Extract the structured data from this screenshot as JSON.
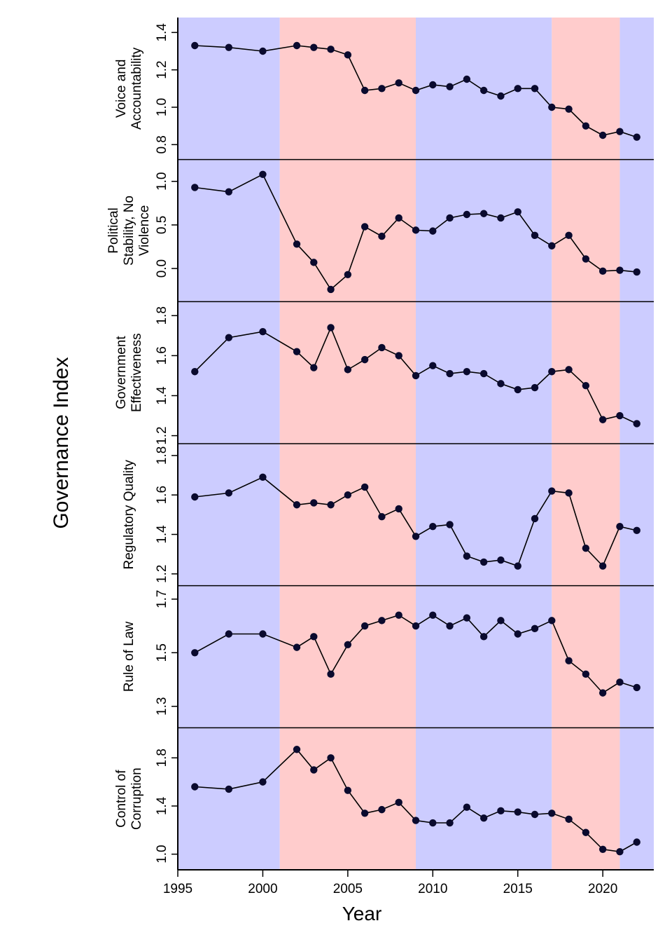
{
  "chart_data": {
    "type": "line",
    "ylabel": "Governance Index",
    "xlabel": "Year",
    "xlim": [
      1995,
      2023
    ],
    "x_ticks": [
      1995,
      2000,
      2005,
      2010,
      2015,
      2020
    ],
    "x_tick_labels": [
      "1995",
      "2000",
      "2005",
      "2010",
      "2015",
      "2020"
    ],
    "years": [
      1996,
      1998,
      2000,
      2002,
      2003,
      2004,
      2005,
      2006,
      2007,
      2008,
      2009,
      2010,
      2011,
      2012,
      2013,
      2014,
      2015,
      2016,
      2017,
      2018,
      2019,
      2020,
      2021,
      2022
    ],
    "background_bands": [
      {
        "start": 1995,
        "end": 2001,
        "color": "#ccccff"
      },
      {
        "start": 2001,
        "end": 2009,
        "color": "#ffcccc"
      },
      {
        "start": 2009,
        "end": 2017,
        "color": "#ccccff"
      },
      {
        "start": 2017,
        "end": 2021,
        "color": "#ffcccc"
      },
      {
        "start": 2021,
        "end": 2023,
        "color": "#ccccff"
      }
    ],
    "line_color": "#000000",
    "point_color": "#0a0a2e",
    "grid": false,
    "panels": [
      {
        "name_lines": [
          "Voice and",
          "Accountability"
        ],
        "ylim": [
          0.72,
          1.48
        ],
        "ticks": [
          0.8,
          1.0,
          1.2,
          1.4
        ],
        "tick_labels": [
          "0.8",
          "1.0",
          "1.2",
          "1.4"
        ],
        "values": [
          1.33,
          1.32,
          1.3,
          1.33,
          1.32,
          1.31,
          1.28,
          1.09,
          1.1,
          1.13,
          1.09,
          1.12,
          1.11,
          1.15,
          1.09,
          1.06,
          1.1,
          1.1,
          1.0,
          0.99,
          0.9,
          0.85,
          0.87,
          0.84
        ]
      },
      {
        "name_lines": [
          "Political",
          "Stability, No",
          "Violence"
        ],
        "ylim": [
          -0.38,
          1.25
        ],
        "ticks": [
          0.0,
          0.5,
          1.0
        ],
        "tick_labels": [
          "0.0",
          "0.5",
          "1.0"
        ],
        "values": [
          0.93,
          0.88,
          1.08,
          0.28,
          0.07,
          -0.24,
          -0.07,
          0.48,
          0.37,
          0.58,
          0.44,
          0.43,
          0.58,
          0.62,
          0.63,
          0.58,
          0.65,
          0.38,
          0.26,
          0.38,
          0.11,
          -0.03,
          -0.02,
          -0.04
        ]
      },
      {
        "name_lines": [
          "Government",
          "Effectiveness"
        ],
        "ylim": [
          1.16,
          1.87
        ],
        "ticks": [
          1.2,
          1.4,
          1.6,
          1.8
        ],
        "tick_labels": [
          "1.2",
          "1.4",
          "1.6",
          "1.8"
        ],
        "values": [
          1.52,
          1.69,
          1.72,
          1.62,
          1.54,
          1.74,
          1.53,
          1.58,
          1.64,
          1.6,
          1.5,
          1.55,
          1.51,
          1.52,
          1.51,
          1.46,
          1.43,
          1.44,
          1.52,
          1.53,
          1.45,
          1.28,
          1.3,
          1.26
        ]
      },
      {
        "name_lines": [
          "Regulatory Quality"
        ],
        "ylim": [
          1.14,
          1.86
        ],
        "ticks": [
          1.2,
          1.4,
          1.6,
          1.8
        ],
        "tick_labels": [
          "1.2",
          "1.4",
          "1.6",
          "1.8"
        ],
        "values": [
          1.59,
          1.61,
          1.69,
          1.55,
          1.56,
          1.55,
          1.6,
          1.64,
          1.49,
          1.53,
          1.39,
          1.44,
          1.45,
          1.29,
          1.26,
          1.27,
          1.24,
          1.48,
          1.62,
          1.61,
          1.33,
          1.24,
          1.44,
          1.42
        ]
      },
      {
        "name_lines": [
          "Rule of Law"
        ],
        "ylim": [
          1.22,
          1.75
        ],
        "ticks": [
          1.3,
          1.5,
          1.7
        ],
        "tick_labels": [
          "1.3",
          "1.5",
          "1.7"
        ],
        "values": [
          1.5,
          1.57,
          1.57,
          1.52,
          1.56,
          1.42,
          1.53,
          1.6,
          1.62,
          1.64,
          1.6,
          1.64,
          1.6,
          1.63,
          1.56,
          1.62,
          1.57,
          1.59,
          1.62,
          1.47,
          1.42,
          1.35,
          1.39,
          1.37
        ]
      },
      {
        "name_lines": [
          "Control of",
          "Corruption"
        ],
        "ylim": [
          0.87,
          2.05
        ],
        "ticks": [
          1.0,
          1.4,
          1.8
        ],
        "tick_labels": [
          "1.0",
          "1.4",
          "1.8"
        ],
        "values": [
          1.56,
          1.54,
          1.6,
          1.87,
          1.7,
          1.8,
          1.53,
          1.34,
          1.37,
          1.43,
          1.28,
          1.26,
          1.26,
          1.39,
          1.3,
          1.36,
          1.35,
          1.33,
          1.34,
          1.29,
          1.18,
          1.04,
          1.02,
          1.1
        ]
      }
    ]
  }
}
